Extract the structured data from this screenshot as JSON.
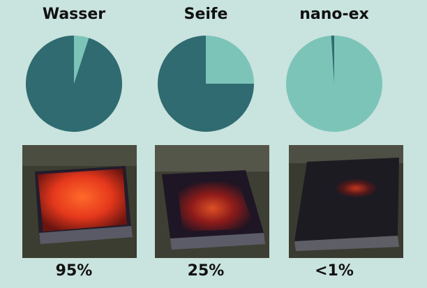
{
  "colors": {
    "background": "#c9e3de",
    "dark": "#2f6b70",
    "light": "#7cc4b8"
  },
  "chart_data": {
    "type": "pie",
    "charts": [
      {
        "title": "Wasser",
        "label": "95%",
        "dark_share": 0.95,
        "light_share": 0.05
      },
      {
        "title": "Seife",
        "label": "25%",
        "dark_share": 0.75,
        "light_share": 0.25
      },
      {
        "title": "nano-ex",
        "label": "<1%",
        "dark_share": 0.01,
        "light_share": 0.99
      }
    ]
  }
}
